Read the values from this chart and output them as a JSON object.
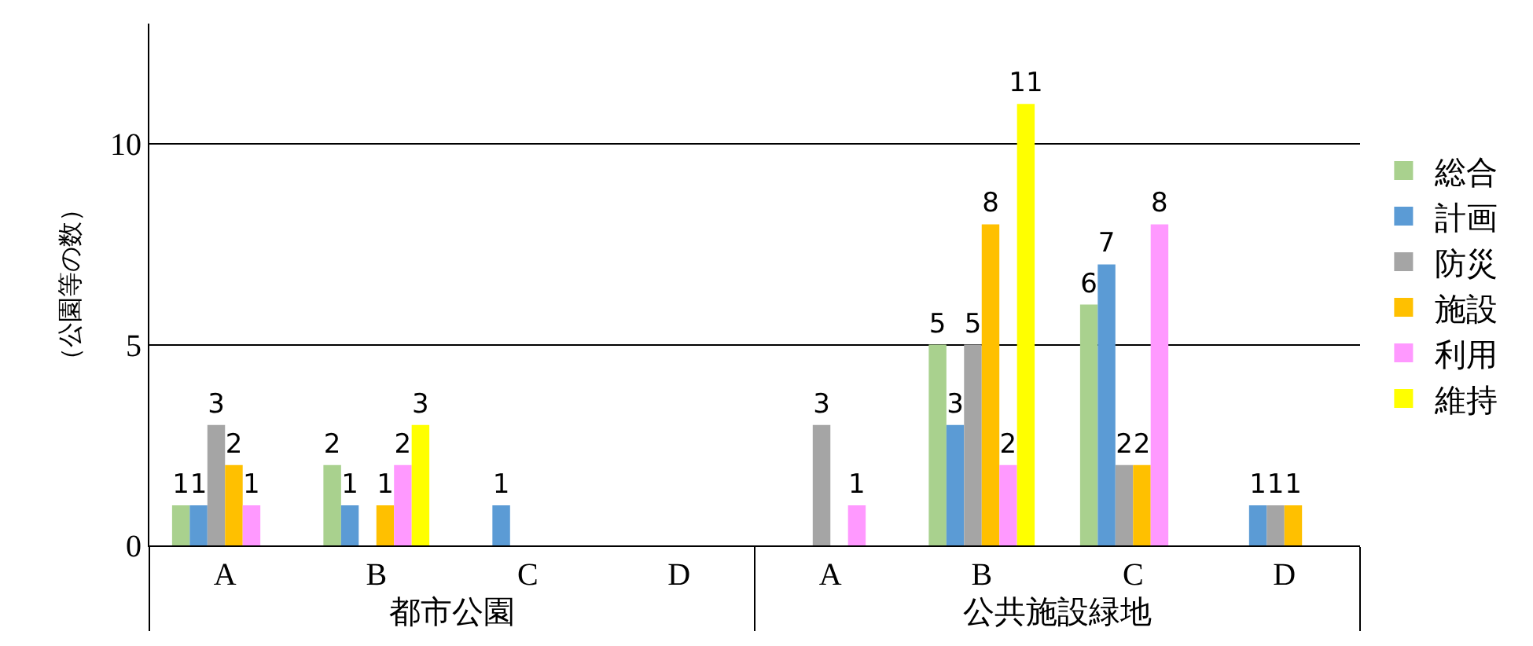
{
  "chart_data": {
    "type": "bar",
    "ylabel": "（公園等の数）",
    "categories": [
      "A",
      "B",
      "C",
      "D",
      "A",
      "B",
      "C",
      "D"
    ],
    "annotations": [
      "都市公園",
      "公共施設緑地"
    ],
    "series": [
      {
        "name": "総合",
        "color": "#a9d18e",
        "values": [
          1,
          2,
          null,
          null,
          null,
          5,
          6,
          null
        ]
      },
      {
        "name": "計画",
        "color": "#5b9bd5",
        "values": [
          1,
          1,
          1,
          null,
          null,
          3,
          7,
          1
        ]
      },
      {
        "name": "防災",
        "color": "#a5a5a5",
        "values": [
          3,
          null,
          null,
          null,
          3,
          5,
          2,
          1
        ]
      },
      {
        "name": "施設",
        "color": "#ffc000",
        "values": [
          2,
          1,
          null,
          null,
          null,
          8,
          2,
          1
        ]
      },
      {
        "name": "利用",
        "color": "#ff99ff",
        "values": [
          1,
          2,
          null,
          null,
          1,
          2,
          8,
          null
        ]
      },
      {
        "name": "維持",
        "color": "#ffff00",
        "values": [
          null,
          3,
          null,
          null,
          null,
          11,
          null,
          null
        ]
      }
    ],
    "ylim": [
      0,
      13
    ],
    "yticks": [
      0,
      5,
      10
    ],
    "grid": "y",
    "legend": "right",
    "data_labels": true
  }
}
